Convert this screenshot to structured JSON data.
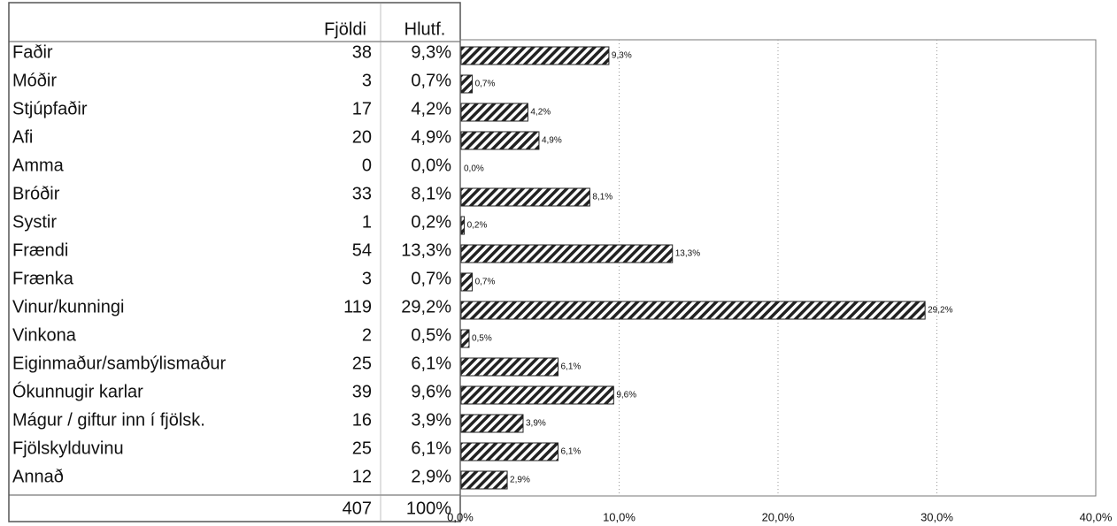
{
  "table": {
    "columns": [
      "Fjöldi",
      "Hlutf."
    ],
    "rows": [
      [
        "Faðir",
        38,
        "9,3%"
      ],
      [
        "Móðir",
        3,
        "0,7%"
      ],
      [
        "Stjúpfaðir",
        17,
        "4,2%"
      ],
      [
        "Afi",
        20,
        "4,9%"
      ],
      [
        "Amma",
        0,
        "0,0%"
      ],
      [
        "Bróðir",
        33,
        "8,1%"
      ],
      [
        "Systir",
        1,
        "0,2%"
      ],
      [
        "Frændi",
        54,
        "13,3%"
      ],
      [
        "Frænka",
        3,
        "0,7%"
      ],
      [
        "Vinur/kunningi",
        119,
        "29,2%"
      ],
      [
        "Vinkona",
        2,
        "0,5%"
      ],
      [
        "Eiginmaður/sambýlismaður",
        25,
        "6,1%"
      ],
      [
        "Ókunnugir karlar",
        39,
        "9,6%"
      ],
      [
        "Mágur / giftur inn í fjölsk.",
        16,
        "3,9%"
      ],
      [
        "Fjölskylduvinu",
        25,
        "6,1%"
      ],
      [
        "Annað",
        12,
        "2,9%"
      ]
    ],
    "total": [
      407,
      "100%"
    ]
  },
  "chart_data": {
    "type": "barh",
    "values": [
      9.3,
      0.7,
      4.2,
      4.9,
      0,
      8.1,
      0.2,
      13.3,
      0.7,
      29.2,
      0.5,
      6.1,
      9.6,
      3.9,
      6.1,
      2.9
    ],
    "value_labels": [
      "9,3%",
      "0,7%",
      "4,2%",
      "4,9%",
      "0,0%",
      "8,1%",
      "0,2%",
      "13,3%",
      "0,7%",
      "29,2%",
      "0,5%",
      "6,1%",
      "9,6%",
      "3,9%",
      "6,1%",
      "2,9%"
    ],
    "xlim": [
      0,
      40
    ],
    "xticks": [
      {
        "value": 0,
        "label": "0,0%"
      },
      {
        "value": 10,
        "label": "10,0%"
      },
      {
        "value": 20,
        "label": "20,0%"
      },
      {
        "value": 30,
        "label": "30,0%"
      },
      {
        "value": 40,
        "label": "40,0%"
      }
    ],
    "color": "#222222",
    "grid": true
  }
}
